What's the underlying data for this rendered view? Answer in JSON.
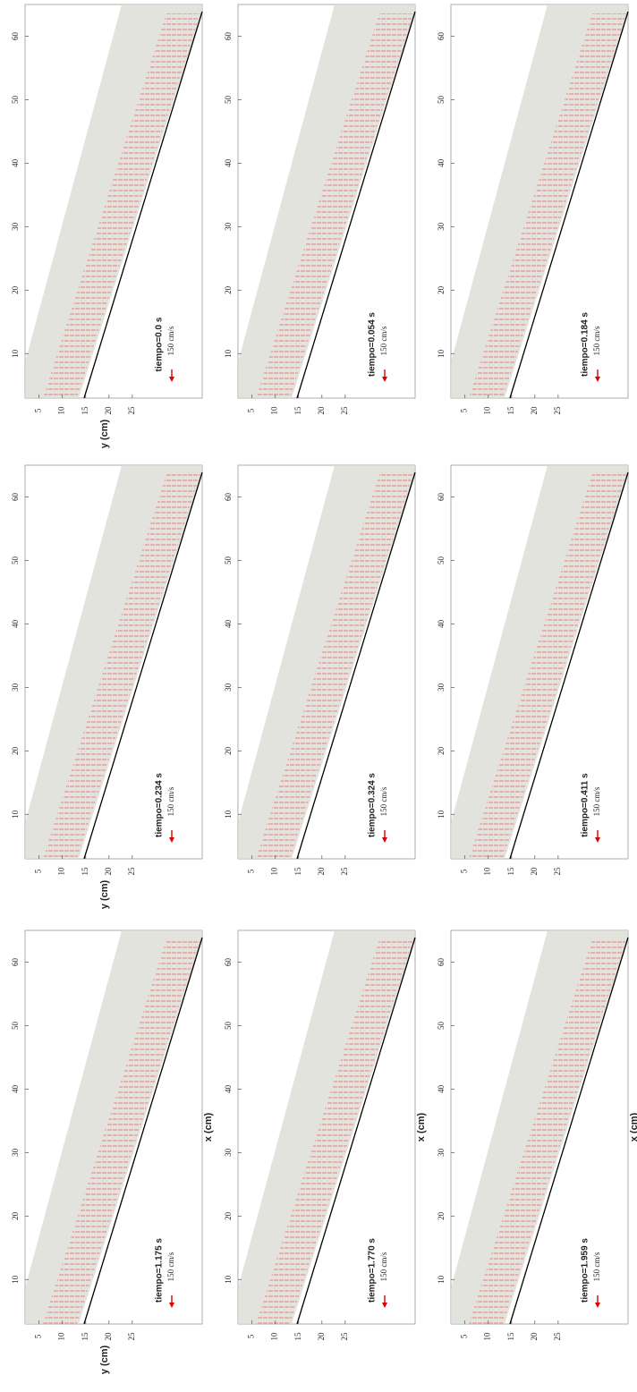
{
  "chart_data": [
    {
      "type": "quiver",
      "title": "tiempo=0.0 s",
      "scale_label": "150 cm/s",
      "ylabel": "y (cm)",
      "xlim": [
        3,
        65
      ],
      "ylim": [
        2,
        40
      ],
      "xticks": [
        10,
        20,
        30,
        40,
        50,
        60
      ],
      "yticks": [
        5,
        10,
        15,
        20,
        25
      ]
    },
    {
      "type": "quiver",
      "title": "tiempo=0.234 s",
      "scale_label": "150 cm/s",
      "ylabel": "y (cm)",
      "xlim": [
        3,
        65
      ],
      "ylim": [
        2,
        40
      ],
      "xticks": [
        10,
        20,
        30,
        40,
        50,
        60
      ],
      "yticks": [
        5,
        10,
        15,
        20,
        25
      ]
    },
    {
      "type": "quiver",
      "title": "tiempo=1.175 s",
      "scale_label": "150 cm/s",
      "ylabel": "y (cm)",
      "xlabel": "x (cm)",
      "xlim": [
        3,
        65
      ],
      "ylim": [
        2,
        40
      ],
      "xticks": [
        10,
        20,
        30,
        40,
        50,
        60
      ],
      "yticks": [
        5,
        10,
        15,
        20,
        25
      ]
    },
    {
      "type": "quiver",
      "title": "tiempo=0.054 s",
      "scale_label": "150 cm/s",
      "xlim": [
        3,
        65
      ],
      "ylim": [
        2,
        40
      ],
      "xticks": [
        10,
        20,
        30,
        40,
        50,
        60
      ],
      "yticks": [
        5,
        10,
        15,
        20,
        25
      ]
    },
    {
      "type": "quiver",
      "title": "tiempo=0.324 s",
      "scale_label": "150 cm/s",
      "xlim": [
        3,
        65
      ],
      "ylim": [
        2,
        40
      ],
      "xticks": [
        10,
        20,
        30,
        40,
        50,
        60
      ],
      "yticks": [
        5,
        10,
        15,
        20,
        25
      ]
    },
    {
      "type": "quiver",
      "title": "tiempo=1.770 s",
      "scale_label": "150 cm/s",
      "xlabel": "x (cm)",
      "xlim": [
        3,
        65
      ],
      "ylim": [
        2,
        40
      ],
      "xticks": [
        10,
        20,
        30,
        40,
        50,
        60
      ],
      "yticks": [
        5,
        10,
        15,
        20,
        25
      ]
    },
    {
      "type": "quiver",
      "title": "tiempo=0.184 s",
      "scale_label": "150 cm/s",
      "xlim": [
        3,
        65
      ],
      "ylim": [
        2,
        40
      ],
      "xticks": [
        10,
        20,
        30,
        40,
        50,
        60
      ],
      "yticks": [
        5,
        10,
        15,
        20,
        25
      ]
    },
    {
      "type": "quiver",
      "title": "tiempo=0.411 s",
      "scale_label": "150 cm/s",
      "xlim": [
        3,
        65
      ],
      "ylim": [
        2,
        40
      ],
      "xticks": [
        10,
        20,
        30,
        40,
        50,
        60
      ],
      "yticks": [
        5,
        10,
        15,
        20,
        25
      ]
    },
    {
      "type": "quiver",
      "title": "tiempo=1.959 s",
      "scale_label": "150 cm/s",
      "xlabel": "x (cm)",
      "xlim": [
        3,
        65
      ],
      "ylim": [
        2,
        40
      ],
      "xticks": [
        10,
        20,
        30,
        40,
        50,
        60
      ],
      "yticks": [
        5,
        10,
        15,
        20,
        25
      ]
    }
  ]
}
